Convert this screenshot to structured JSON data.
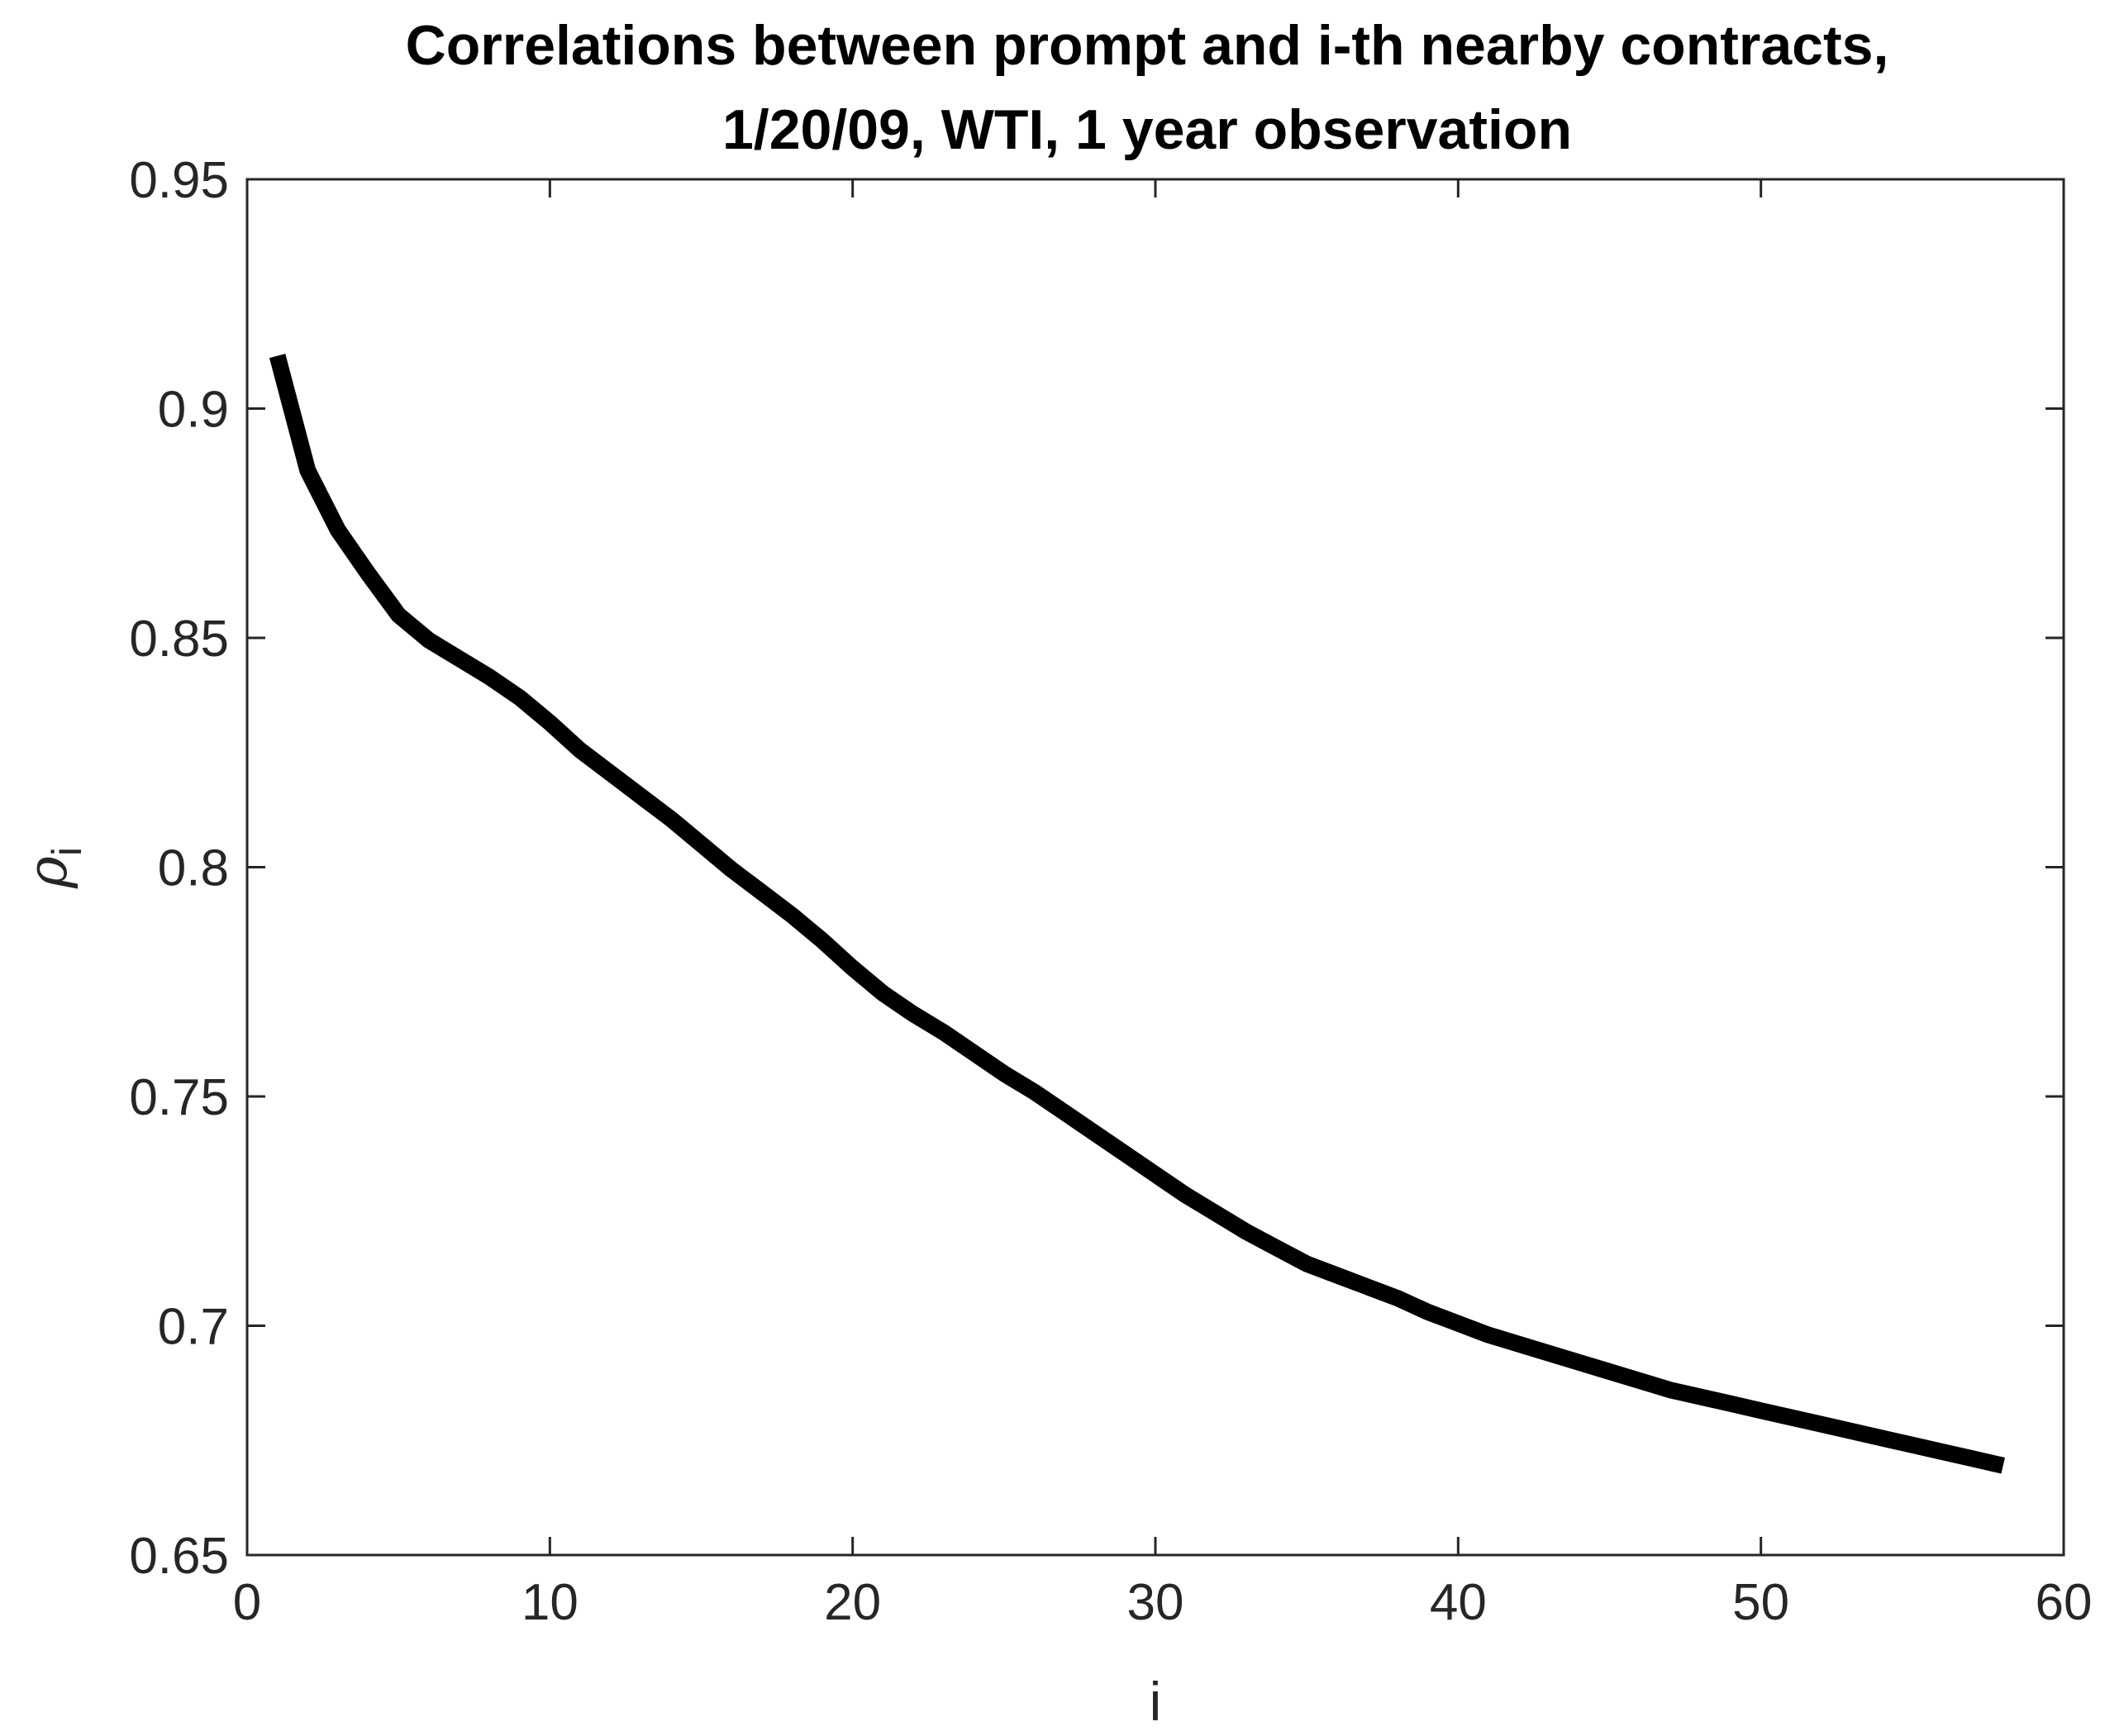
{
  "chart_data": {
    "type": "line",
    "title_line1": "Correlations between prompt and i-th nearby contracts,",
    "title_line2": "1/20/09, WTI, 1 year observation",
    "xlabel": "i",
    "ylabel": "ρ",
    "ylabel_subscript": "i",
    "xlim": [
      0,
      60
    ],
    "ylim": [
      0.65,
      0.95
    ],
    "xticks": [
      0,
      10,
      20,
      30,
      40,
      50,
      60
    ],
    "xtick_labels": [
      "0",
      "10",
      "20",
      "30",
      "40",
      "50",
      "60"
    ],
    "yticks": [
      0.65,
      0.7,
      0.75,
      0.8,
      0.85,
      0.9,
      0.95
    ],
    "ytick_labels": [
      "0.65",
      "0.7",
      "0.75",
      "0.8",
      "0.85",
      "0.9",
      "0.95"
    ],
    "grid": false,
    "legend": "none",
    "line_color": "#000000",
    "series": [
      {
        "x": [
          1,
          2,
          3,
          4,
          5,
          6,
          7,
          8,
          9,
          10,
          11,
          12,
          13,
          14,
          15,
          16,
          17,
          18,
          19,
          20,
          21,
          22,
          23,
          24,
          25,
          26,
          27,
          28,
          29,
          30,
          31,
          32,
          33,
          34,
          35,
          36,
          37,
          38,
          39,
          40,
          41,
          42,
          43,
          44,
          45,
          46,
          47,
          48,
          49,
          50,
          51,
          52,
          53,
          54,
          55,
          56,
          57,
          58
        ],
        "y": [
          0.9115,
          0.8865,
          0.8735,
          0.864,
          0.855,
          0.8495,
          0.8455,
          0.8415,
          0.837,
          0.8315,
          0.8255,
          0.8205,
          0.8155,
          0.8105,
          0.805,
          0.7995,
          0.7945,
          0.7895,
          0.784,
          0.778,
          0.7725,
          0.768,
          0.764,
          0.7595,
          0.755,
          0.751,
          0.7465,
          0.742,
          0.7375,
          0.733,
          0.7285,
          0.7245,
          0.7205,
          0.717,
          0.7135,
          0.711,
          0.7085,
          0.706,
          0.703,
          0.7005,
          0.698,
          0.696,
          0.694,
          0.692,
          0.69,
          0.688,
          0.686,
          0.6845,
          0.683,
          0.6815,
          0.68,
          0.6785,
          0.677,
          0.6755,
          0.674,
          0.6725,
          0.671,
          0.6695
        ]
      }
    ]
  }
}
